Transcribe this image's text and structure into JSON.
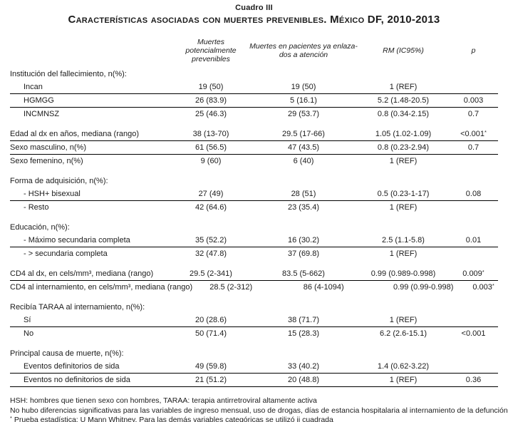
{
  "colors": {
    "text": "#1b1b1b",
    "rule": "#000000",
    "background": "#ffffff"
  },
  "title": {
    "kicker": "Cuadro III",
    "main": "Características asociadas con muertes prevenibles. México DF, 2010-2013"
  },
  "columns": [
    {
      "label": "Muertes potencialmente\nprevenibles"
    },
    {
      "label": "Muertes en pacientes ya enlaza-\ndos a atención"
    },
    {
      "label": "RM (IC95%)"
    },
    {
      "label": "p"
    }
  ],
  "rows": [
    {
      "type": "group",
      "label": "Institución del fallecimiento, n(%):"
    },
    {
      "type": "data",
      "indent": true,
      "label": "Incan",
      "c": [
        "19 (50)",
        "19 (50)",
        "1 (REF)",
        ""
      ],
      "rule": true
    },
    {
      "type": "data",
      "indent": true,
      "label": "HGMGG",
      "c": [
        "26 (83.9)",
        "5 (16.1)",
        "5.2 (1.48-20.5)",
        "0.003"
      ],
      "rule": true
    },
    {
      "type": "data",
      "indent": true,
      "label": "INCMNSZ",
      "c": [
        "25 (46.3)",
        "29 (53.7)",
        "0.8 (0.34-2.15)",
        "0.7"
      ],
      "rule": false
    },
    {
      "type": "spacer"
    },
    {
      "type": "data",
      "indent": false,
      "label": "Edad al dx en años,  mediana (rango)",
      "c": [
        "38 (13-70)",
        "29.5 (17-66)",
        "1.05 (1.02-1.09)",
        "<0.001"
      ],
      "psup": "*",
      "rule": true
    },
    {
      "type": "data",
      "indent": false,
      "label": "Sexo masculino, n(%)",
      "c": [
        "61 (56.5)",
        "47 (43.5)",
        "0.8 (0.23-2.94)",
        "0.7"
      ],
      "rule": true
    },
    {
      "type": "data",
      "indent": false,
      "label": "Sexo femenino, n(%)",
      "c": [
        "9 (60)",
        "6 (40)",
        "1 (REF)",
        ""
      ],
      "rule": false
    },
    {
      "type": "spacer"
    },
    {
      "type": "group",
      "label": "Forma de adquisición, n(%):"
    },
    {
      "type": "data",
      "indent": true,
      "label": "- HSH+ bisexual",
      "c": [
        "27 (49)",
        "28 (51)",
        "0.5 (0.23-1-17)",
        "0.08"
      ],
      "rule": true
    },
    {
      "type": "data",
      "indent": true,
      "label": "- Resto",
      "c": [
        "42 (64.6)",
        "23 (35.4)",
        "1 (REF)",
        ""
      ],
      "rule": false
    },
    {
      "type": "spacer"
    },
    {
      "type": "group",
      "label": "Educación, n(%):"
    },
    {
      "type": "data",
      "indent": true,
      "label": "- Máximo secundaria completa",
      "c": [
        "35 (52.2)",
        "16 (30.2)",
        "2.5 (1.1-5.8)",
        "0.01"
      ],
      "rule": true
    },
    {
      "type": "data",
      "indent": true,
      "label": "- > secundaria completa",
      "c": [
        "32 (47.8)",
        "37 (69.8)",
        "1 (REF)",
        ""
      ],
      "rule": false
    },
    {
      "type": "spacer"
    },
    {
      "type": "data",
      "indent": false,
      "label": "CD4 al dx, en cels/mm³, mediana (rango)",
      "c": [
        "29.5 (2-341)",
        "83.5 (5-662)",
        "0.99 (0.989-0.998)",
        "0.009"
      ],
      "psup": "*",
      "rule": true
    },
    {
      "type": "data",
      "indent": false,
      "label": "CD4 al internamiento, en cels/mm³, mediana (rango)",
      "c": [
        "28.5 (2-312)",
        "86 (4-1094)",
        "0.99 (0.99-0.998)",
        "0.003"
      ],
      "psup": "*",
      "rule": false
    },
    {
      "type": "spacer"
    },
    {
      "type": "group",
      "label": "Recibía TARAA al internamiento, n(%):"
    },
    {
      "type": "data",
      "indent": true,
      "label": "Sí",
      "c": [
        "20 (28.6)",
        "38 (71.7)",
        "1 (REF)",
        ""
      ],
      "rule": true
    },
    {
      "type": "data",
      "indent": true,
      "label": "No",
      "c": [
        "50 (71.4)",
        "15 (28.3)",
        "6.2 (2.6-15.1)",
        "<0.001"
      ],
      "rule": false
    },
    {
      "type": "spacer"
    },
    {
      "type": "group",
      "label": "Principal causa de muerte, n(%):"
    },
    {
      "type": "data",
      "indent": true,
      "label": "Eventos definitorios de sida",
      "c": [
        "49  (59.8)",
        "33 (40.2)",
        "1.4 (0.62-3.22)",
        ""
      ],
      "rule": true
    },
    {
      "type": "data",
      "indent": true,
      "label": "Eventos no definitorios de sida",
      "c": [
        "21 (51.2)",
        "20 (48.8)",
        "1 (REF)",
        "0.36"
      ],
      "rule": true
    }
  ],
  "footnotes": [
    {
      "sup": "",
      "text": "HSH: hombres que tienen sexo con hombres, TARAA: terapia antirretroviral altamente activa"
    },
    {
      "sup": "",
      "text": "No hubo diferencias significativas para las variables de ingreso mensual, uso de drogas, días de estancia hospitalaria al internamiento de la defunción"
    },
    {
      "sup": "*",
      "text": " Prueba estadística: U Mann Whitney. Para las demás variables categóricas se utilizó ji cuadrada"
    }
  ]
}
